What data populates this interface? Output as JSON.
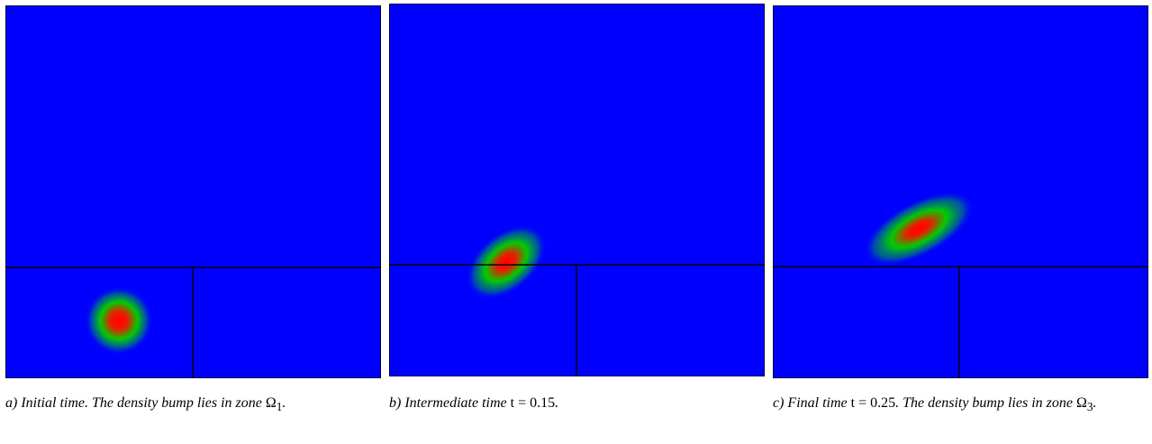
{
  "colors": {
    "background": "#0000ff",
    "bump_core": "#ff0000",
    "bump_ring": "#00cc00",
    "zone_lines": "#000000"
  },
  "panels": [
    {
      "id": "a",
      "caption_prefix": "a) Initial time. The density bump lies in zone ",
      "caption_math": "Ω",
      "caption_math_sub": "1",
      "caption_suffix": "."
    },
    {
      "id": "b",
      "caption_prefix": "b) Intermediate time ",
      "caption_math": "t = 0.15",
      "caption_suffix": "."
    },
    {
      "id": "c",
      "caption_prefix": "c) Final time ",
      "caption_math": "t = 0.25",
      "caption_mid": ". The density bump lies in zone ",
      "caption_math2": "Ω",
      "caption_math2_sub": "3",
      "caption_suffix": "."
    }
  ]
}
